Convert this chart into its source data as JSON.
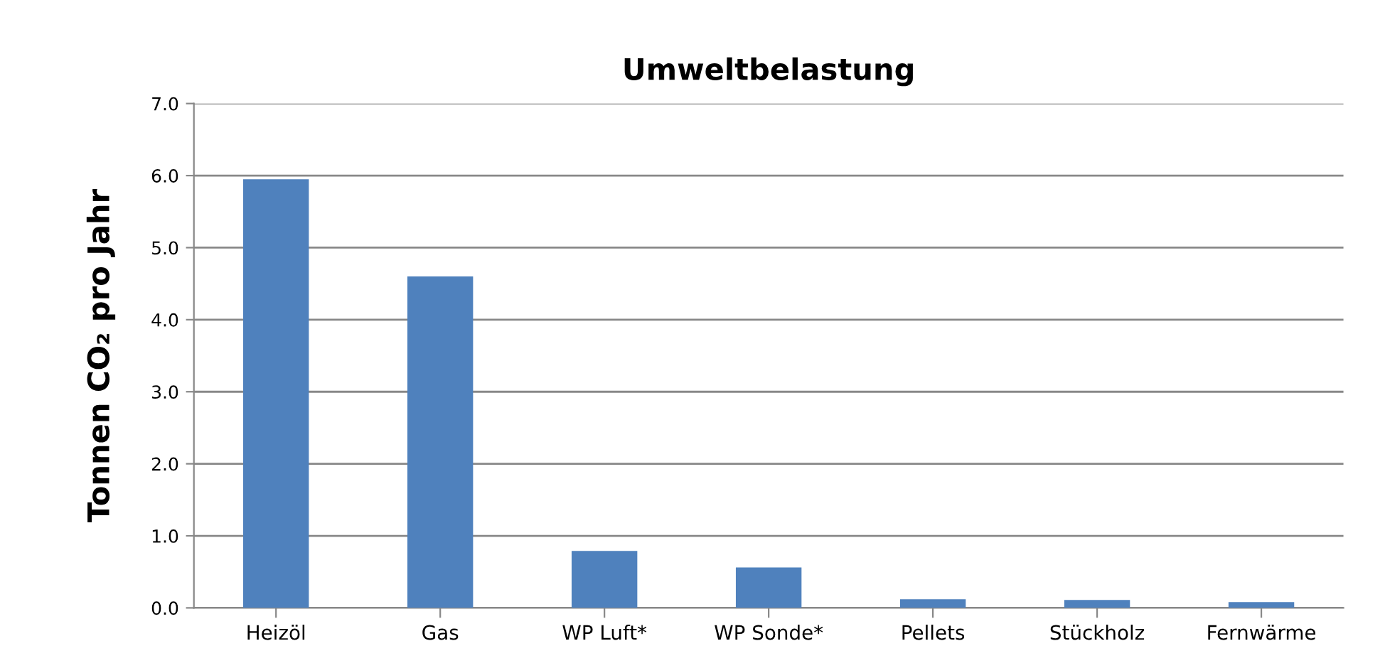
{
  "chart_data": {
    "type": "bar",
    "title": "Umweltbelastung",
    "ylabel": "Tonnen CO₂ pro Jahr",
    "categories": [
      "Heizöl",
      "Gas",
      "WP Luft*",
      "WP Sonde*",
      "Pellets",
      "Stückholz",
      "Fernwärme"
    ],
    "values": [
      5.95,
      4.6,
      0.79,
      0.56,
      0.12,
      0.11,
      0.08
    ],
    "color": "#4f81bd",
    "ylim": [
      0,
      7
    ],
    "yticks": [
      {
        "value": 0,
        "label": "0.0"
      },
      {
        "value": 1,
        "label": "1.0"
      },
      {
        "value": 2,
        "label": "2.0"
      },
      {
        "value": 3,
        "label": "3.0"
      },
      {
        "value": 4,
        "label": "4.0"
      },
      {
        "value": 5,
        "label": "5.0"
      },
      {
        "value": 6,
        "label": "6.0"
      },
      {
        "value": 7,
        "label": "7.0"
      }
    ],
    "grid": "y"
  }
}
